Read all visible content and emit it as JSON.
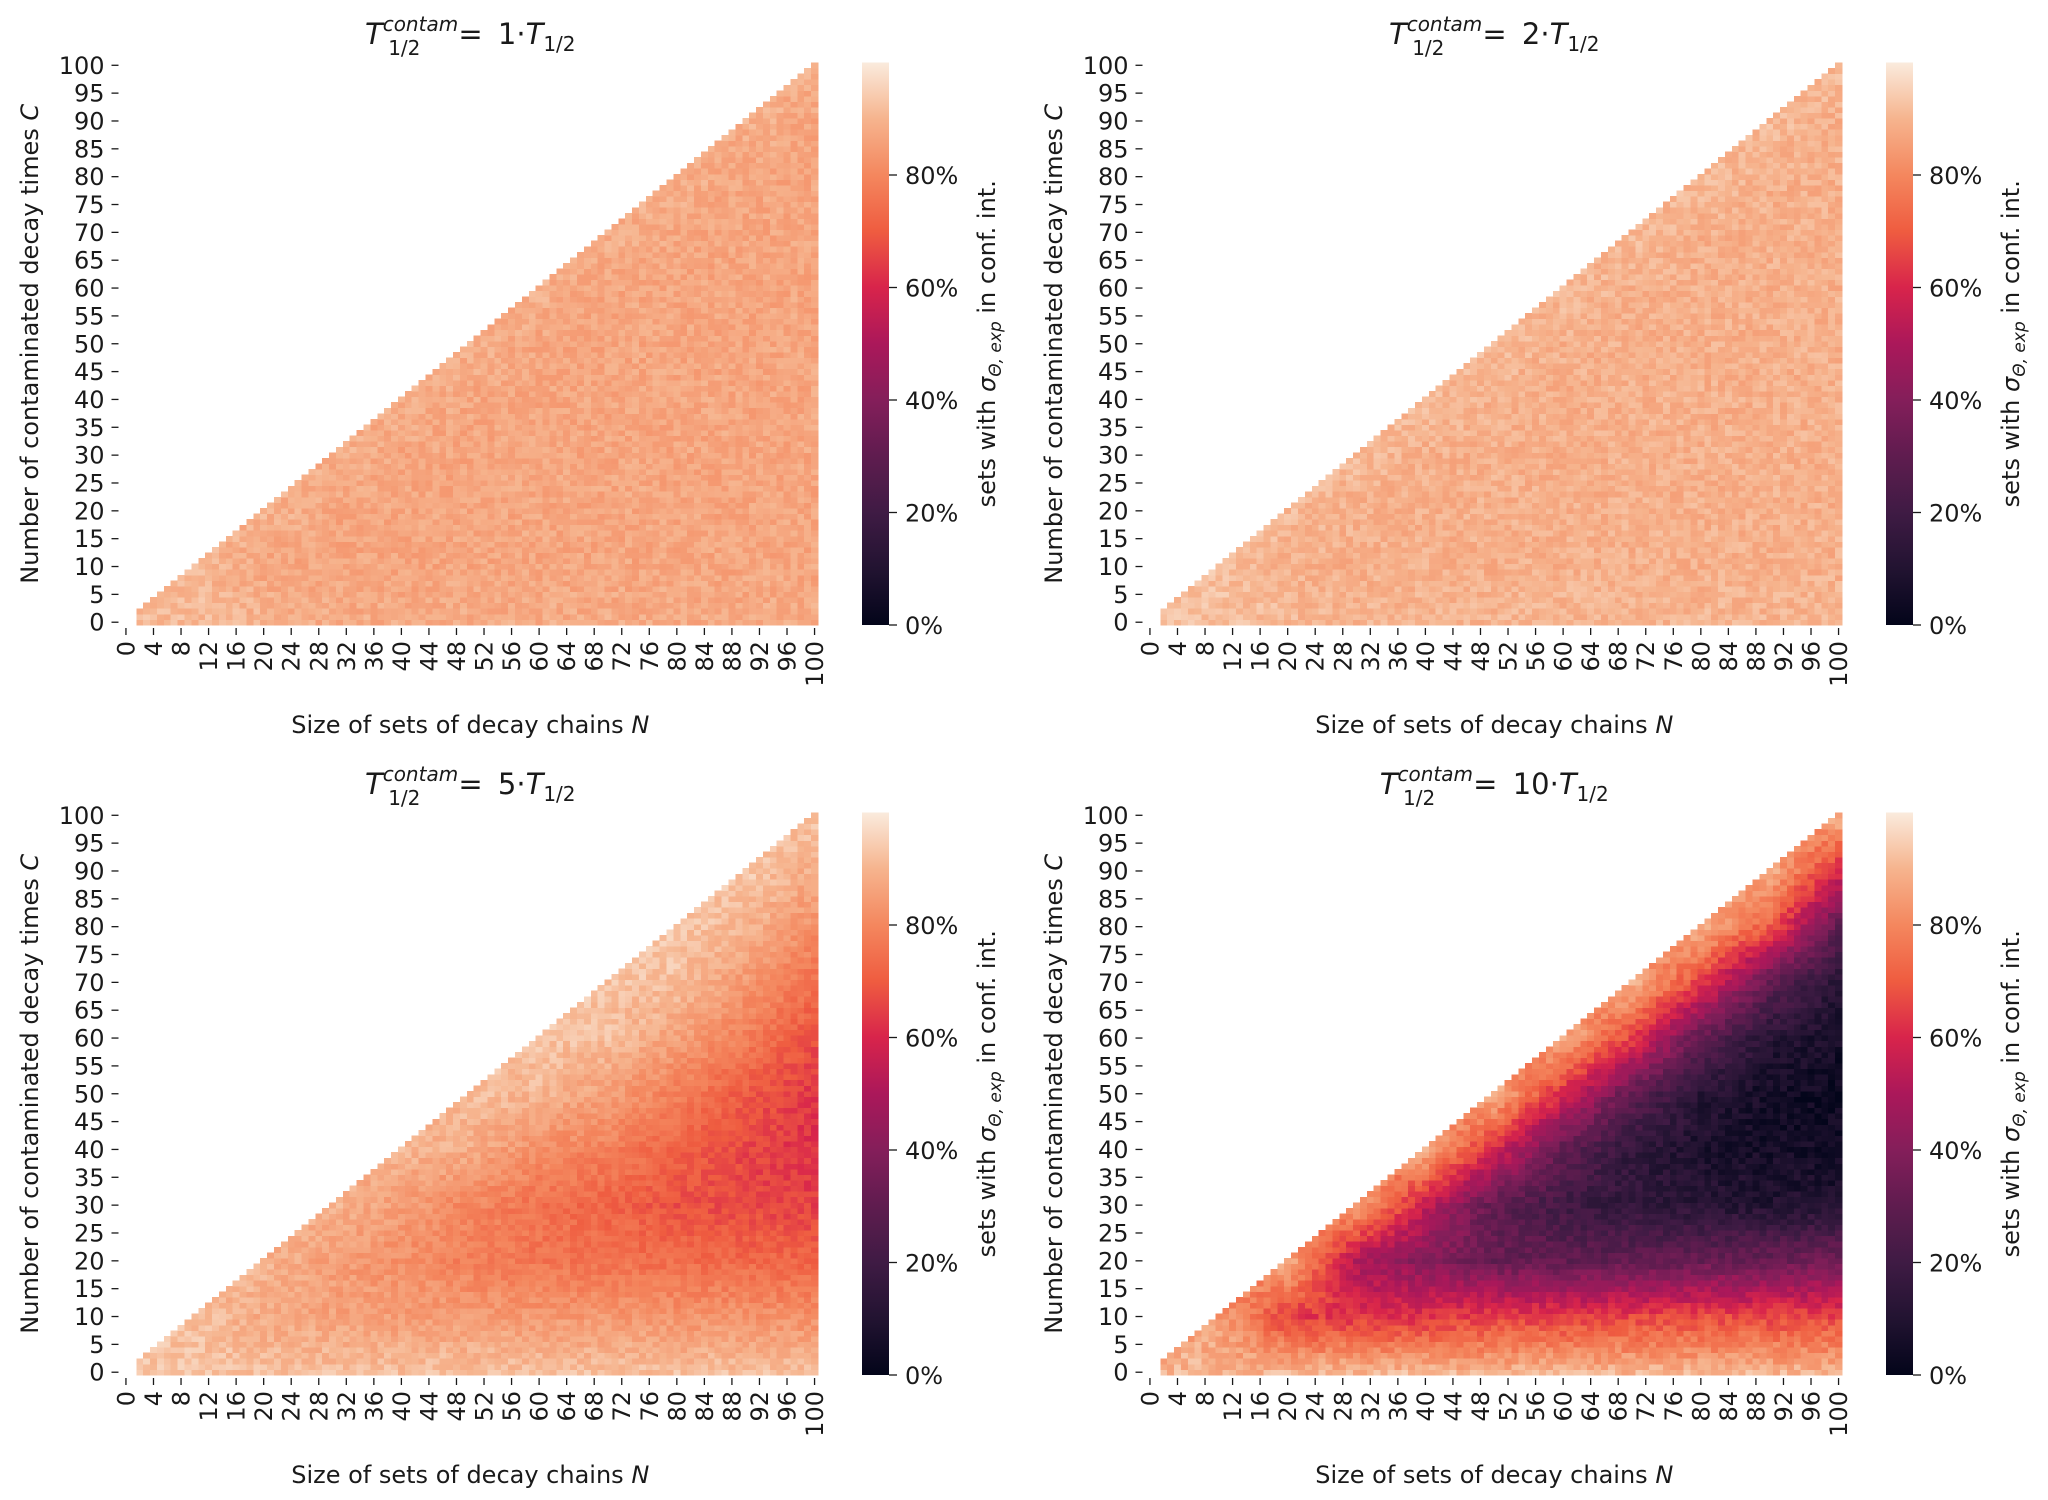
{
  "colormap": {
    "name": "rocket",
    "stops": [
      [
        0.0,
        "#03051a"
      ],
      [
        0.1,
        "#221331"
      ],
      [
        0.2,
        "#3f1b44"
      ],
      [
        0.3,
        "#5f1c4f"
      ],
      [
        0.4,
        "#841e5a"
      ],
      [
        0.5,
        "#ab185a"
      ],
      [
        0.6,
        "#d8244b"
      ],
      [
        0.7,
        "#ef5c40"
      ],
      [
        0.8,
        "#f4875e"
      ],
      [
        0.9,
        "#f6b48e"
      ],
      [
        1.0,
        "#faebdd"
      ]
    ]
  },
  "chart_data": [
    {
      "type": "heatmap",
      "title": {
        "base": "T",
        "sup": "contam",
        "sub": "1/2",
        "eq": "= ",
        "factor": "1·",
        "rhs_base": "T",
        "rhs_sub": "1/2"
      },
      "xlabel": {
        "text": "Size of sets of decay chains ",
        "var": "N"
      },
      "ylabel": {
        "text": "Number of contaminated decay times ",
        "var": "C"
      },
      "colorbar": {
        "label_pre": "sets with ",
        "sym": "σ",
        "sub": "Θ, exp",
        "label_post": " in conf. int.",
        "ticks": [
          "0%",
          "20%",
          "40%",
          "60%",
          "80%"
        ],
        "tick_values": [
          0,
          0.2,
          0.4,
          0.6,
          0.8
        ],
        "range": [
          0,
          1
        ]
      },
      "x_ticks": [
        "0",
        "4",
        "8",
        "12",
        "16",
        "20",
        "24",
        "28",
        "32",
        "36",
        "40",
        "44",
        "48",
        "52",
        "56",
        "60",
        "64",
        "68",
        "72",
        "76",
        "80",
        "84",
        "88",
        "92",
        "96",
        "100"
      ],
      "y_ticks": [
        "0",
        "5",
        "10",
        "15",
        "20",
        "25",
        "30",
        "35",
        "40",
        "45",
        "50",
        "55",
        "60",
        "65",
        "70",
        "75",
        "80",
        "85",
        "90",
        "95",
        "100"
      ],
      "x_range": [
        0,
        100
      ],
      "y_range": [
        0,
        100
      ],
      "grid_N": [
        10,
        20,
        30,
        40,
        50,
        60,
        70,
        80,
        90,
        100
      ],
      "grid_C": [
        0,
        10,
        20,
        30,
        40,
        50,
        60,
        70,
        80,
        90,
        100
      ],
      "values": [
        [
          0.91,
          0.9,
          0.88,
          0.88,
          0.88,
          0.88,
          0.88,
          0.88,
          0.88,
          0.88
        ],
        [
          0.91,
          0.87,
          0.87,
          0.87,
          0.87,
          0.87,
          0.87,
          0.87,
          0.87,
          0.87
        ],
        [
          null,
          0.9,
          0.87,
          0.87,
          0.87,
          0.87,
          0.87,
          0.87,
          0.87,
          0.87
        ],
        [
          null,
          null,
          0.89,
          0.87,
          0.87,
          0.87,
          0.87,
          0.87,
          0.87,
          0.87
        ],
        [
          null,
          null,
          null,
          0.89,
          0.87,
          0.87,
          0.87,
          0.87,
          0.87,
          0.87
        ],
        [
          null,
          null,
          null,
          null,
          0.89,
          0.87,
          0.87,
          0.87,
          0.87,
          0.87
        ],
        [
          null,
          null,
          null,
          null,
          null,
          0.89,
          0.87,
          0.87,
          0.87,
          0.87
        ],
        [
          null,
          null,
          null,
          null,
          null,
          null,
          0.89,
          0.87,
          0.87,
          0.87
        ],
        [
          null,
          null,
          null,
          null,
          null,
          null,
          null,
          0.89,
          0.87,
          0.87
        ],
        [
          null,
          null,
          null,
          null,
          null,
          null,
          null,
          null,
          0.89,
          0.87
        ],
        [
          null,
          null,
          null,
          null,
          null,
          null,
          null,
          null,
          null,
          0.89
        ]
      ]
    },
    {
      "type": "heatmap",
      "title": {
        "base": "T",
        "sup": "contam",
        "sub": "1/2",
        "eq": "= ",
        "factor": "2·",
        "rhs_base": "T",
        "rhs_sub": "1/2"
      },
      "xlabel": {
        "text": "Size of sets of decay chains ",
        "var": "N"
      },
      "ylabel": {
        "text": "Number of contaminated decay times ",
        "var": "C"
      },
      "colorbar": {
        "label_pre": "sets with ",
        "sym": "σ",
        "sub": "Θ, exp",
        "label_post": " in conf. int.",
        "ticks": [
          "0%",
          "20%",
          "40%",
          "60%",
          "80%"
        ],
        "tick_values": [
          0,
          0.2,
          0.4,
          0.6,
          0.8
        ],
        "range": [
          0,
          1
        ]
      },
      "x_ticks": [
        "0",
        "4",
        "8",
        "12",
        "16",
        "20",
        "24",
        "28",
        "32",
        "36",
        "40",
        "44",
        "48",
        "52",
        "56",
        "60",
        "64",
        "68",
        "72",
        "76",
        "80",
        "84",
        "88",
        "92",
        "96",
        "100"
      ],
      "y_ticks": [
        "0",
        "5",
        "10",
        "15",
        "20",
        "25",
        "30",
        "35",
        "40",
        "45",
        "50",
        "55",
        "60",
        "65",
        "70",
        "75",
        "80",
        "85",
        "90",
        "95",
        "100"
      ],
      "x_range": [
        0,
        100
      ],
      "y_range": [
        0,
        100
      ],
      "grid_N": [
        10,
        20,
        30,
        40,
        50,
        60,
        70,
        80,
        90,
        100
      ],
      "grid_C": [
        0,
        10,
        20,
        30,
        40,
        50,
        60,
        70,
        80,
        90,
        100
      ],
      "values": [
        [
          0.92,
          0.91,
          0.9,
          0.9,
          0.9,
          0.9,
          0.9,
          0.9,
          0.9,
          0.9
        ],
        [
          0.92,
          0.89,
          0.89,
          0.89,
          0.89,
          0.89,
          0.89,
          0.89,
          0.89,
          0.89
        ],
        [
          null,
          0.91,
          0.89,
          0.89,
          0.89,
          0.89,
          0.89,
          0.89,
          0.89,
          0.89
        ],
        [
          null,
          null,
          0.91,
          0.89,
          0.89,
          0.89,
          0.89,
          0.89,
          0.89,
          0.89
        ],
        [
          null,
          null,
          null,
          0.91,
          0.89,
          0.89,
          0.89,
          0.89,
          0.89,
          0.89
        ],
        [
          null,
          null,
          null,
          null,
          0.91,
          0.89,
          0.89,
          0.89,
          0.89,
          0.89
        ],
        [
          null,
          null,
          null,
          null,
          null,
          0.91,
          0.89,
          0.89,
          0.89,
          0.89
        ],
        [
          null,
          null,
          null,
          null,
          null,
          null,
          0.91,
          0.89,
          0.89,
          0.89
        ],
        [
          null,
          null,
          null,
          null,
          null,
          null,
          null,
          0.91,
          0.89,
          0.89
        ],
        [
          null,
          null,
          null,
          null,
          null,
          null,
          null,
          null,
          0.91,
          0.89
        ],
        [
          null,
          null,
          null,
          null,
          null,
          null,
          null,
          null,
          null,
          0.91
        ]
      ]
    },
    {
      "type": "heatmap",
      "title": {
        "base": "T",
        "sup": "contam",
        "sub": "1/2",
        "eq": "= ",
        "factor": "5·",
        "rhs_base": "T",
        "rhs_sub": "1/2"
      },
      "xlabel": {
        "text": "Size of sets of decay chains ",
        "var": "N"
      },
      "ylabel": {
        "text": "Number of contaminated decay times ",
        "var": "C"
      },
      "colorbar": {
        "label_pre": "sets with ",
        "sym": "σ",
        "sub": "Θ, exp",
        "label_post": " in conf. int.",
        "ticks": [
          "0%",
          "20%",
          "40%",
          "60%",
          "80%"
        ],
        "tick_values": [
          0,
          0.2,
          0.4,
          0.6,
          0.8
        ],
        "range": [
          0,
          1
        ]
      },
      "x_ticks": [
        "0",
        "4",
        "8",
        "12",
        "16",
        "20",
        "24",
        "28",
        "32",
        "36",
        "40",
        "44",
        "48",
        "52",
        "56",
        "60",
        "64",
        "68",
        "72",
        "76",
        "80",
        "84",
        "88",
        "92",
        "96",
        "100"
      ],
      "y_ticks": [
        "0",
        "5",
        "10",
        "15",
        "20",
        "25",
        "30",
        "35",
        "40",
        "45",
        "50",
        "55",
        "60",
        "65",
        "70",
        "75",
        "80",
        "85",
        "90",
        "95",
        "100"
      ],
      "x_range": [
        0,
        100
      ],
      "y_range": [
        0,
        100
      ],
      "grid_N": [
        10,
        20,
        30,
        40,
        50,
        60,
        70,
        80,
        90,
        100
      ],
      "grid_C": [
        0,
        10,
        20,
        30,
        40,
        50,
        60,
        70,
        80,
        90,
        100
      ],
      "values": [
        [
          0.93,
          0.92,
          0.92,
          0.92,
          0.92,
          0.92,
          0.92,
          0.92,
          0.92,
          0.92
        ],
        [
          0.92,
          0.88,
          0.86,
          0.85,
          0.85,
          0.84,
          0.84,
          0.83,
          0.83,
          0.82
        ],
        [
          null,
          0.9,
          0.85,
          0.82,
          0.78,
          0.76,
          0.75,
          0.74,
          0.73,
          0.72
        ],
        [
          null,
          null,
          0.9,
          0.85,
          0.8,
          0.75,
          0.72,
          0.68,
          0.66,
          0.65
        ],
        [
          null,
          null,
          null,
          0.9,
          0.88,
          0.82,
          0.78,
          0.72,
          0.66,
          0.62
        ],
        [
          null,
          null,
          null,
          null,
          0.92,
          0.9,
          0.85,
          0.78,
          0.7,
          0.63
        ],
        [
          null,
          null,
          null,
          null,
          null,
          0.93,
          0.92,
          0.86,
          0.78,
          0.68
        ],
        [
          null,
          null,
          null,
          null,
          null,
          null,
          0.93,
          0.92,
          0.84,
          0.75
        ],
        [
          null,
          null,
          null,
          null,
          null,
          null,
          null,
          0.94,
          0.9,
          0.82
        ],
        [
          null,
          null,
          null,
          null,
          null,
          null,
          null,
          null,
          0.94,
          0.88
        ],
        [
          null,
          null,
          null,
          null,
          null,
          null,
          null,
          null,
          null,
          0.93
        ]
      ]
    },
    {
      "type": "heatmap",
      "title": {
        "base": "T",
        "sup": "contam",
        "sub": "1/2",
        "eq": "= ",
        "factor": "10·",
        "rhs_base": "T",
        "rhs_sub": "1/2"
      },
      "xlabel": {
        "text": "Size of sets of decay chains ",
        "var": "N"
      },
      "ylabel": {
        "text": "Number of contaminated decay times ",
        "var": "C"
      },
      "colorbar": {
        "label_pre": "sets with ",
        "sym": "σ",
        "sub": "Θ, exp",
        "label_post": " in conf. int.",
        "ticks": [
          "0%",
          "20%",
          "40%",
          "60%",
          "80%"
        ],
        "tick_values": [
          0,
          0.2,
          0.4,
          0.6,
          0.8
        ],
        "range": [
          0,
          1
        ]
      },
      "x_ticks": [
        "0",
        "4",
        "8",
        "12",
        "16",
        "20",
        "24",
        "28",
        "32",
        "36",
        "40",
        "44",
        "48",
        "52",
        "56",
        "60",
        "64",
        "68",
        "72",
        "76",
        "80",
        "84",
        "88",
        "92",
        "96",
        "100"
      ],
      "y_ticks": [
        "0",
        "5",
        "10",
        "15",
        "20",
        "25",
        "30",
        "35",
        "40",
        "45",
        "50",
        "55",
        "60",
        "65",
        "70",
        "75",
        "80",
        "85",
        "90",
        "95",
        "100"
      ],
      "x_range": [
        0,
        100
      ],
      "y_range": [
        0,
        100
      ],
      "grid_N": [
        10,
        20,
        30,
        40,
        50,
        60,
        70,
        80,
        90,
        100
      ],
      "grid_C": [
        0,
        10,
        20,
        30,
        40,
        50,
        60,
        70,
        80,
        90,
        100
      ],
      "values": [
        [
          0.9,
          0.9,
          0.9,
          0.9,
          0.9,
          0.9,
          0.9,
          0.9,
          0.9,
          0.9
        ],
        [
          0.85,
          0.65,
          0.62,
          0.63,
          0.65,
          0.65,
          0.66,
          0.67,
          0.66,
          0.66
        ],
        [
          null,
          0.88,
          0.5,
          0.4,
          0.32,
          0.3,
          0.3,
          0.32,
          0.33,
          0.35
        ],
        [
          null,
          null,
          0.88,
          0.55,
          0.3,
          0.2,
          0.15,
          0.12,
          0.1,
          0.1
        ],
        [
          null,
          null,
          null,
          0.9,
          0.6,
          0.3,
          0.15,
          0.08,
          0.06,
          0.05
        ],
        [
          null,
          null,
          null,
          null,
          0.9,
          0.6,
          0.3,
          0.12,
          0.05,
          0.03
        ],
        [
          null,
          null,
          null,
          null,
          null,
          0.9,
          0.65,
          0.3,
          0.12,
          0.06
        ],
        [
          null,
          null,
          null,
          null,
          null,
          null,
          0.9,
          0.65,
          0.3,
          0.12
        ],
        [
          null,
          null,
          null,
          null,
          null,
          null,
          null,
          0.9,
          0.7,
          0.3
        ],
        [
          null,
          null,
          null,
          null,
          null,
          null,
          null,
          null,
          0.9,
          0.6
        ],
        [
          null,
          null,
          null,
          null,
          null,
          null,
          null,
          null,
          null,
          0.9
        ]
      ]
    }
  ]
}
